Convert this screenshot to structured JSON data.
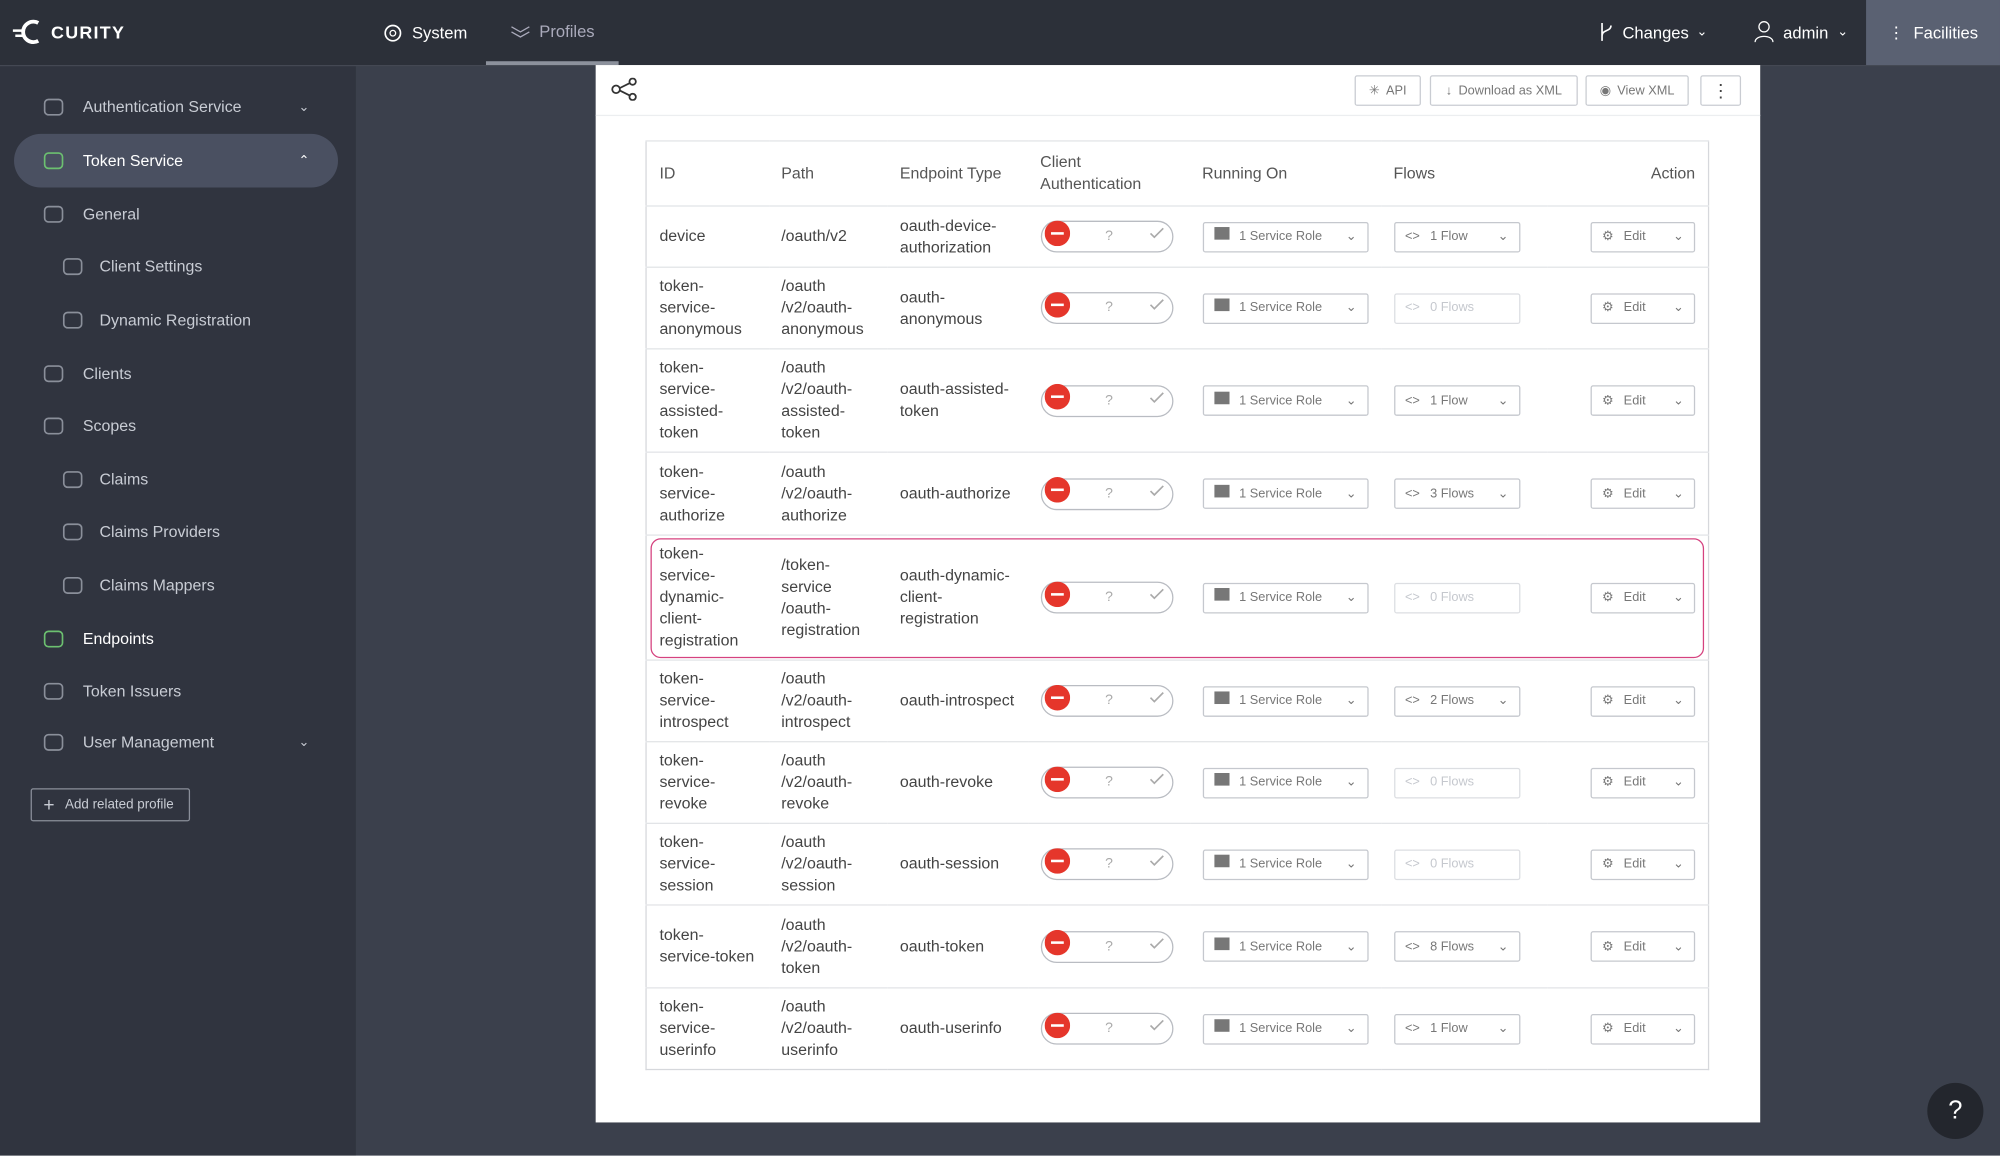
{
  "nav": {
    "brand": "CURITY",
    "tabs": [
      "System",
      "Profiles"
    ],
    "changes": "Changes",
    "user": "admin",
    "facilities": "Facilities"
  },
  "sidebar": {
    "items": [
      "Authentication Service",
      "Token Service",
      "General",
      "Client Settings",
      "Dynamic Registration",
      "Clients",
      "Scopes",
      "Claims",
      "Claims Providers",
      "Claims Mappers",
      "Endpoints",
      "Token Issuers",
      "User Management"
    ],
    "add_profile": "Add related profile"
  },
  "toolbar": {
    "buttons": [
      "API",
      "Download as XML",
      "View XML"
    ]
  },
  "table": {
    "headers": [
      "ID",
      "Path",
      "Endpoint Type",
      "Client Authentication",
      "Running On",
      "Flows",
      "Action"
    ],
    "toggle_unknown": "?",
    "rows": [
      {
        "id": "device",
        "path": "/oauth/v2",
        "type": "oauth-device-authorization",
        "running_on": "1 Service Role",
        "flows": "1 Flow",
        "action": "Edit"
      },
      {
        "id": "token-service-anonymous",
        "path": "/oauth /v2/oauth-anonymous",
        "type": "oauth-anonymous",
        "running_on": "1 Service Role",
        "flows": "0 Flows",
        "action": "Edit"
      },
      {
        "id": "token-service-assisted-token",
        "path": "/oauth /v2/oauth-assisted-token",
        "type": "oauth-assisted-token",
        "running_on": "1 Service Role",
        "flows": "1 Flow",
        "action": "Edit"
      },
      {
        "id": "token-service-authorize",
        "path": "/oauth /v2/oauth-authorize",
        "type": "oauth-authorize",
        "running_on": "1 Service Role",
        "flows": "3 Flows",
        "action": "Edit"
      },
      {
        "id": "token-service-dynamic-client-registration",
        "path": "/token-service /oauth-registration",
        "type": "oauth-dynamic-client-registration",
        "running_on": "1 Service Role",
        "flows": "0 Flows",
        "action": "Edit"
      },
      {
        "id": "token-service-introspect",
        "path": "/oauth /v2/oauth-introspect",
        "type": "oauth-introspect",
        "running_on": "1 Service Role",
        "flows": "2 Flows",
        "action": "Edit"
      },
      {
        "id": "token-service-revoke",
        "path": "/oauth /v2/oauth-revoke",
        "type": "oauth-revoke",
        "running_on": "1 Service Role",
        "flows": "0 Flows",
        "action": "Edit"
      },
      {
        "id": "token-service-session",
        "path": "/oauth /v2/oauth-session",
        "type": "oauth-session",
        "running_on": "1 Service Role",
        "flows": "0 Flows",
        "action": "Edit"
      },
      {
        "id": "token-service-token",
        "path": "/oauth /v2/oauth-token",
        "type": "oauth-token",
        "running_on": "1 Service Role",
        "flows": "8 Flows",
        "action": "Edit"
      },
      {
        "id": "token-service-userinfo",
        "path": "/oauth /v2/oauth-userinfo",
        "type": "oauth-userinfo",
        "running_on": "1 Service Role",
        "flows": "1 Flow",
        "action": "Edit"
      }
    ]
  },
  "help": "?"
}
